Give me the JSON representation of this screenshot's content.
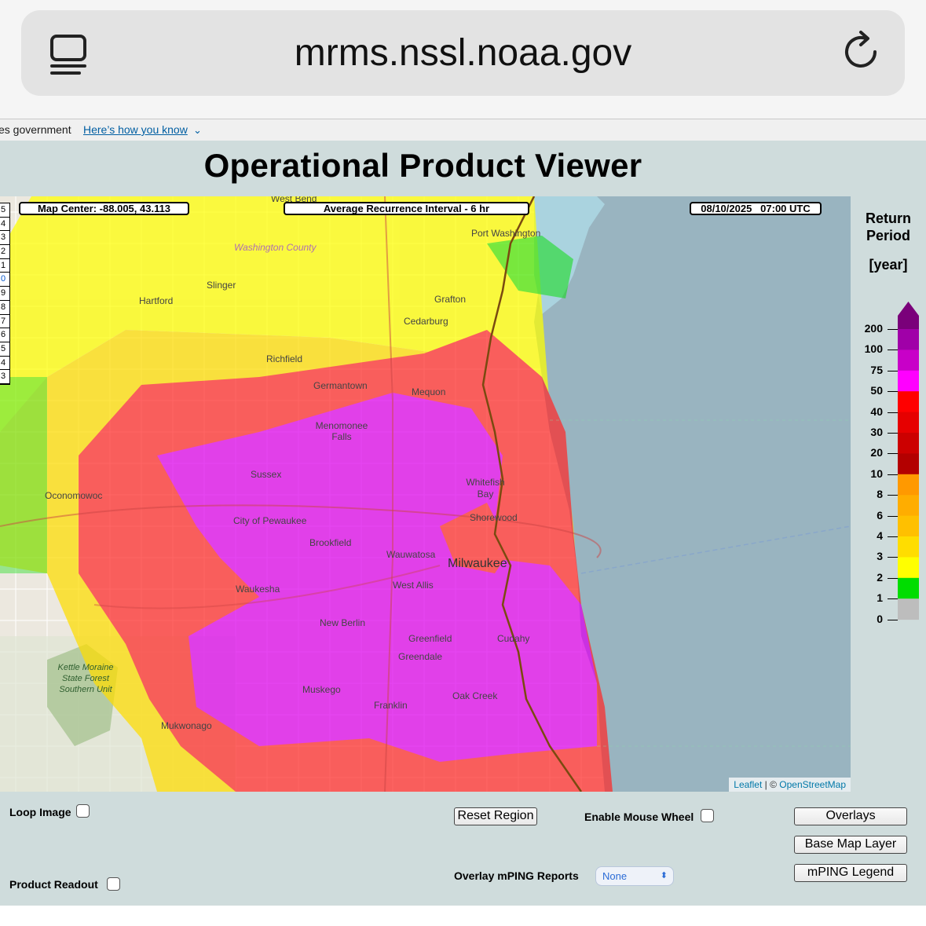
{
  "browser": {
    "url": "mrms.nssl.noaa.gov",
    "tabs_icon": "tabs-icon",
    "reload_icon": "reload-icon"
  },
  "gov_banner": {
    "text": "es government",
    "link": "Here’s how you know",
    "chevron_icon": "chevron-down-icon"
  },
  "page": {
    "title": "Operational Product Viewer"
  },
  "map": {
    "center_label": "Map Center: -88.005, 43.113",
    "product_label": "Average Recurrence Interval - 6 hr",
    "time_label": "08/10/2025   07:00 UTC",
    "attribution_leaflet": "Leaflet",
    "attribution_sep": " | © ",
    "attribution_osm": "OpenStreetMap",
    "zoom_levels": [
      "5",
      "4",
      "3",
      "2",
      "1",
      "0",
      "9",
      "8",
      "7",
      "6",
      "5",
      "4",
      "3"
    ],
    "zoom_selected_index": 5,
    "places": [
      "West Bend",
      "Port Washington",
      "Washington County",
      "Slinger",
      "Hartford",
      "Grafton",
      "Cedarburg",
      "Richfield",
      "Germantown",
      "Mequon",
      "Menomonee Falls",
      "Sussex",
      "Whitefish Bay",
      "Oconomowoc",
      "City of Pewaukee",
      "Shorewood",
      "Brookfield",
      "Oconomowoc",
      "Wauwatosa",
      "Milwaukee",
      "Waukesha",
      "West Allis",
      "New Berlin",
      "Greenfield",
      "Cudahy",
      "Greendale",
      "Kettle Moraine State Forest Southern Unit",
      "Muskego",
      "Oak Creek",
      "Franklin",
      "Mukwonago"
    ]
  },
  "legend": {
    "title_line1": "Return",
    "title_line2": "Period",
    "unit": "[year]",
    "ticks": [
      "200",
      "100",
      "75",
      "50",
      "40",
      "30",
      "20",
      "10",
      "8",
      "6",
      "4",
      "3",
      "2",
      "1",
      "0"
    ],
    "colors": [
      "#a000a8",
      "#c800c8",
      "#ff00ff",
      "#ff0000",
      "#e60000",
      "#cc0000",
      "#b30000",
      "#ff9900",
      "#ffad00",
      "#ffc000",
      "#ffdd00",
      "#ffff00",
      "#00dd00",
      "#bdbdbd"
    ],
    "top_color": "#7a007a"
  },
  "controls": {
    "loop_image": "Loop Image",
    "product_readout": "Product Readout",
    "reset_region": "Reset Region",
    "enable_mouse_wheel": "Enable Mouse Wheel",
    "overlay_mping": "Overlay mPING Reports",
    "mping_select_value": "None",
    "overlays": "Overlays",
    "base_map_layer": "Base Map Layer",
    "mping_legend": "mPING Legend"
  }
}
